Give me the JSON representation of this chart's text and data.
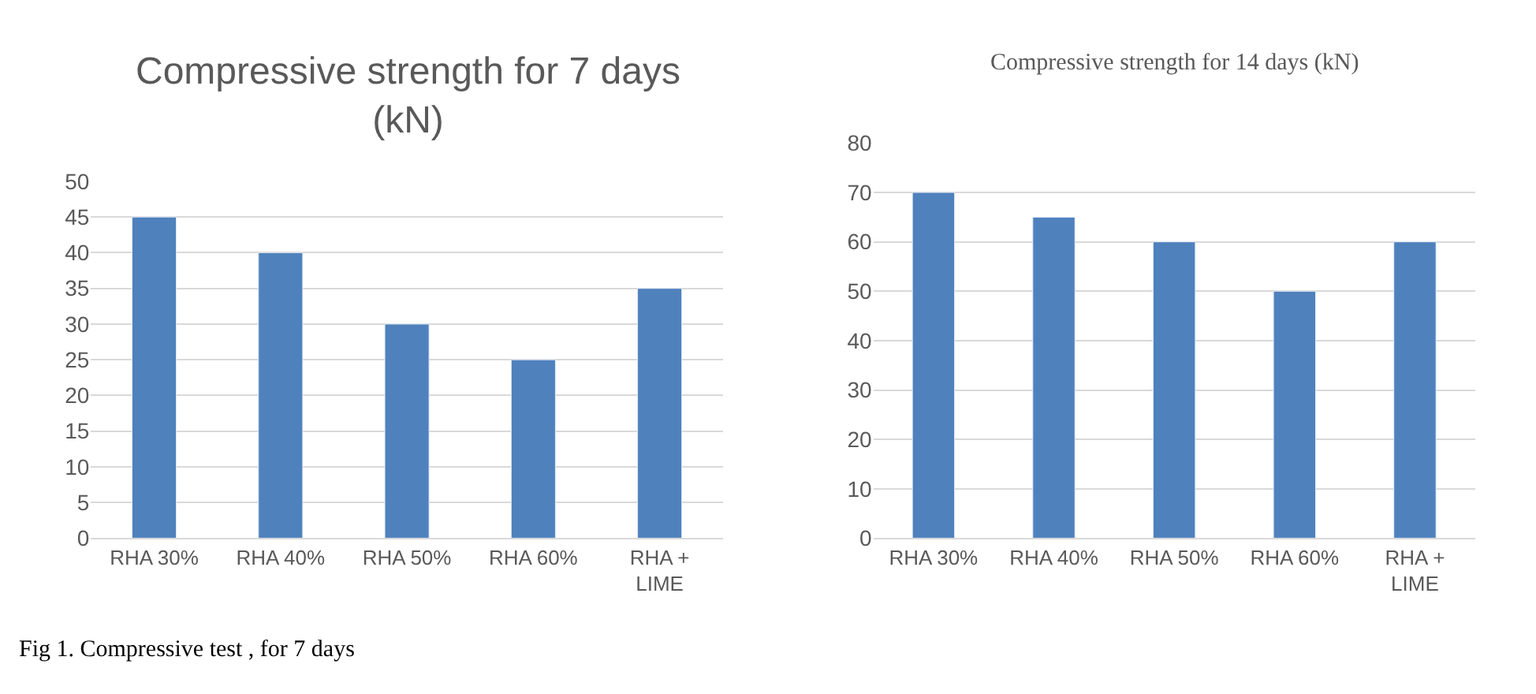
{
  "chart_data": [
    {
      "type": "bar",
      "title": "Compressive strength for 7 days (kN)",
      "categories": [
        "RHA 30%",
        "RHA 40%",
        "RHA 50%",
        "RHA 60%",
        "RHA + LIME"
      ],
      "values": [
        45,
        40,
        30,
        25,
        35
      ],
      "color": "#4f81bd",
      "ylim": [
        0,
        50
      ],
      "yticks": [
        0,
        5,
        10,
        15,
        20,
        25,
        30,
        35,
        40,
        45,
        50
      ],
      "grid": "y",
      "annotations": [
        "Fig 1. Compressive test , for 7 days"
      ]
    },
    {
      "type": "bar",
      "title": "Compressive strength for 14 days (kN)",
      "categories": [
        "RHA 30%",
        "RHA 40%",
        "RHA 50%",
        "RHA 60%",
        "RHA + LIME"
      ],
      "values": [
        70,
        65,
        60,
        50,
        60
      ],
      "color": "#4f81bd",
      "ylim": [
        0,
        80
      ],
      "yticks": [
        0,
        10,
        20,
        30,
        40,
        50,
        60,
        70,
        80
      ],
      "grid": "y"
    }
  ]
}
